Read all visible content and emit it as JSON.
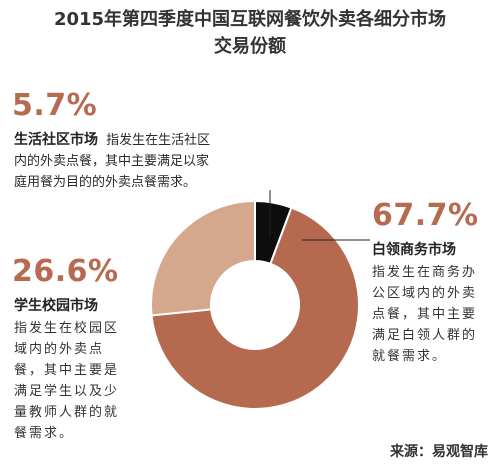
{
  "title_line1": "2015年第四季度中国互联网餐饮外卖各细分市场",
  "title_line2": "交易份额",
  "source": "来源：易观智库",
  "chart_data": {
    "type": "pie",
    "title": "2015年第四季度中国互联网餐饮外卖各细分市场交易份额",
    "slices": [
      {
        "name": "生活社区市场",
        "value": 5.7,
        "pct_label": "5.7%",
        "title": "生活社区市场",
        "title_desc_inline": "指发生在生活社区",
        "desc_lines": [
          "内的外卖点餐，其中主要满足以家",
          "庭用餐为目的的外卖点餐需求。"
        ],
        "color": "#0d0d0d"
      },
      {
        "name": "白领商务市场",
        "value": 67.7,
        "pct_label": "67.7%",
        "title": "白领商务市场",
        "desc_lines": [
          "指发生在商务办",
          "公区域内的外卖",
          "点餐，其中主要",
          "满足白领人群的",
          "就餐需求。"
        ],
        "color": "#b5694e"
      },
      {
        "name": "学生校园市场",
        "value": 26.6,
        "pct_label": "26.6%",
        "title": "学生校园市场",
        "desc_lines": [
          "指发生在校园区",
          "域内的外卖点",
          "餐，其中主要是",
          "满足学生以及少",
          "量教师人群的就",
          "餐需求。"
        ],
        "color": "#d5a88e"
      }
    ]
  }
}
